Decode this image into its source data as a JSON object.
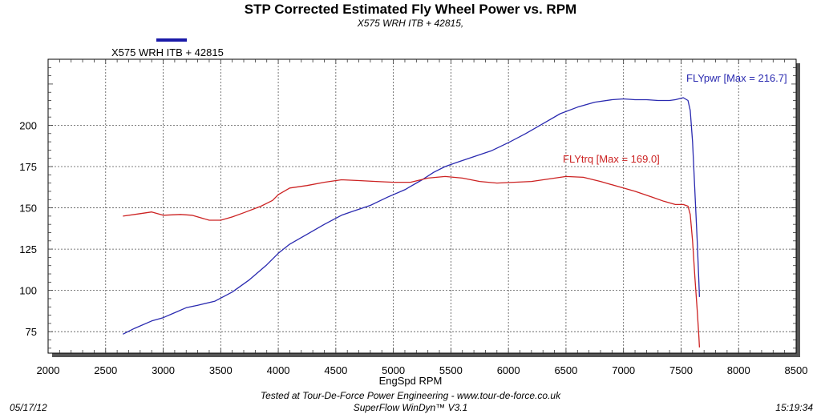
{
  "chart_data": {
    "type": "line",
    "title": "STP Corrected Estimated Fly Wheel Power vs. RPM",
    "subtitle": "X575 WRH ITB + 42815,",
    "xlabel": "EngSpd RPM",
    "ylabel": "",
    "xlim": [
      2000,
      8500
    ],
    "ylim": [
      62,
      240
    ],
    "x_ticks": [
      2000,
      2500,
      3000,
      3500,
      4000,
      4500,
      5000,
      5500,
      6000,
      6500,
      7000,
      7500,
      8000,
      8500
    ],
    "x_tick_labels": [
      "2000",
      "2500",
      "3000",
      "3500",
      "4000",
      "4500",
      "5000",
      "5500",
      "6000",
      "6500",
      "7000",
      "7500",
      "8000",
      "8500"
    ],
    "y_ticks": [
      75,
      100,
      125,
      150,
      175,
      200
    ],
    "y_tick_labels": [
      "75",
      "100",
      "125",
      "150",
      "175",
      "200"
    ],
    "grid": true,
    "legend": {
      "position": "top-left",
      "entries": [
        {
          "name": "X575 WRH ITB + 42815",
          "color": "#1a1aa8"
        }
      ]
    },
    "series": [
      {
        "name": "FLYpwr",
        "color": "#2a2ab0",
        "annotation": "FLYpwr [Max = 216.7]",
        "x": [
          2650,
          2750,
          2900,
          3000,
          3100,
          3200,
          3300,
          3450,
          3600,
          3750,
          3900,
          4000,
          4100,
          4250,
          4400,
          4550,
          4650,
          4800,
          4950,
          5100,
          5250,
          5350,
          5450,
          5550,
          5700,
          5850,
          6000,
          6150,
          6300,
          6450,
          6600,
          6750,
          6900,
          7000,
          7100,
          7200,
          7300,
          7400,
          7450,
          7520,
          7560,
          7580,
          7600,
          7620,
          7640,
          7655,
          7660
        ],
        "values": [
          73.5,
          77,
          81.5,
          83.5,
          86.5,
          89.5,
          91,
          93.5,
          99,
          106.5,
          115.5,
          122.5,
          128,
          134,
          140,
          145.5,
          148,
          151.5,
          156.5,
          161,
          167,
          171.5,
          175,
          177.5,
          181,
          184.5,
          189.5,
          195,
          201,
          207,
          211,
          214,
          215.5,
          216,
          215.5,
          215.5,
          215,
          215,
          215.5,
          216.7,
          215,
          209,
          190,
          160,
          130,
          105,
          96
        ]
      },
      {
        "name": "FLYtrq",
        "color": "#cc2222",
        "annotation": "FLYtrq [Max = 169.0]",
        "x": [
          2650,
          2800,
          2900,
          3000,
          3150,
          3250,
          3400,
          3500,
          3600,
          3700,
          3850,
          3950,
          4000,
          4100,
          4250,
          4400,
          4550,
          4700,
          4850,
          5000,
          5150,
          5300,
          5450,
          5600,
          5750,
          5900,
          6050,
          6200,
          6350,
          6500,
          6650,
          6800,
          6950,
          7100,
          7250,
          7350,
          7450,
          7520,
          7560,
          7580,
          7600,
          7620,
          7640,
          7655,
          7660
        ],
        "values": [
          145,
          146.5,
          147.5,
          145.5,
          146,
          145.5,
          142.5,
          142.5,
          144.5,
          147,
          151,
          154.5,
          158,
          162,
          163.5,
          165.5,
          167,
          166.5,
          166,
          165.5,
          165.5,
          168,
          169,
          168,
          166,
          165,
          165.5,
          166,
          167.5,
          169,
          168.5,
          166,
          163,
          160,
          156.5,
          154,
          152,
          152,
          151,
          146,
          130,
          108,
          88,
          72,
          65.5
        ]
      }
    ]
  },
  "footer": {
    "date": "05/17/12",
    "time": "15:19:34",
    "tested_at": "Tested at Tour-De-Force Power Engineering - www.tour-de-force.co.uk",
    "software": "SuperFlow WinDyn™ V3.1"
  }
}
